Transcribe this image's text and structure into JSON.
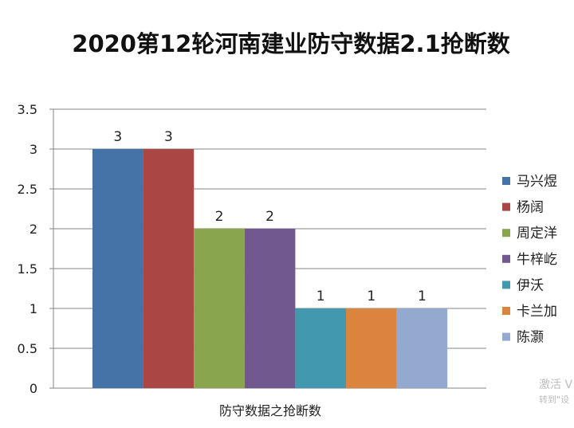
{
  "chart_data": {
    "type": "bar",
    "title": "2020第12轮河南建业防守数据2.1抢断数",
    "xlabel": "防守数据之抢断数",
    "ylabel": "",
    "ylim": [
      0,
      3.5
    ],
    "yticks": [
      "0",
      "0.5",
      "1",
      "1.5",
      "2",
      "2.5",
      "3",
      "3.5"
    ],
    "grid": true,
    "legend_position": "right",
    "categories": [
      "防守数据之抢断数"
    ],
    "series": [
      {
        "name": "马兴煜",
        "values": [
          3
        ],
        "color": "#4572a7"
      },
      {
        "name": "杨阔",
        "values": [
          3
        ],
        "color": "#aa4643"
      },
      {
        "name": "周定洋",
        "values": [
          2
        ],
        "color": "#89a54e"
      },
      {
        "name": "牛梓屹",
        "values": [
          2
        ],
        "color": "#71588f"
      },
      {
        "name": "伊沃",
        "values": [
          1
        ],
        "color": "#4198af"
      },
      {
        "name": "卡兰加",
        "values": [
          1
        ],
        "color": "#db843d"
      },
      {
        "name": "陈灏",
        "values": [
          1
        ],
        "color": "#93a9cf"
      }
    ]
  },
  "watermark": {
    "line1": "激活 V",
    "line2": "转到\"设"
  }
}
